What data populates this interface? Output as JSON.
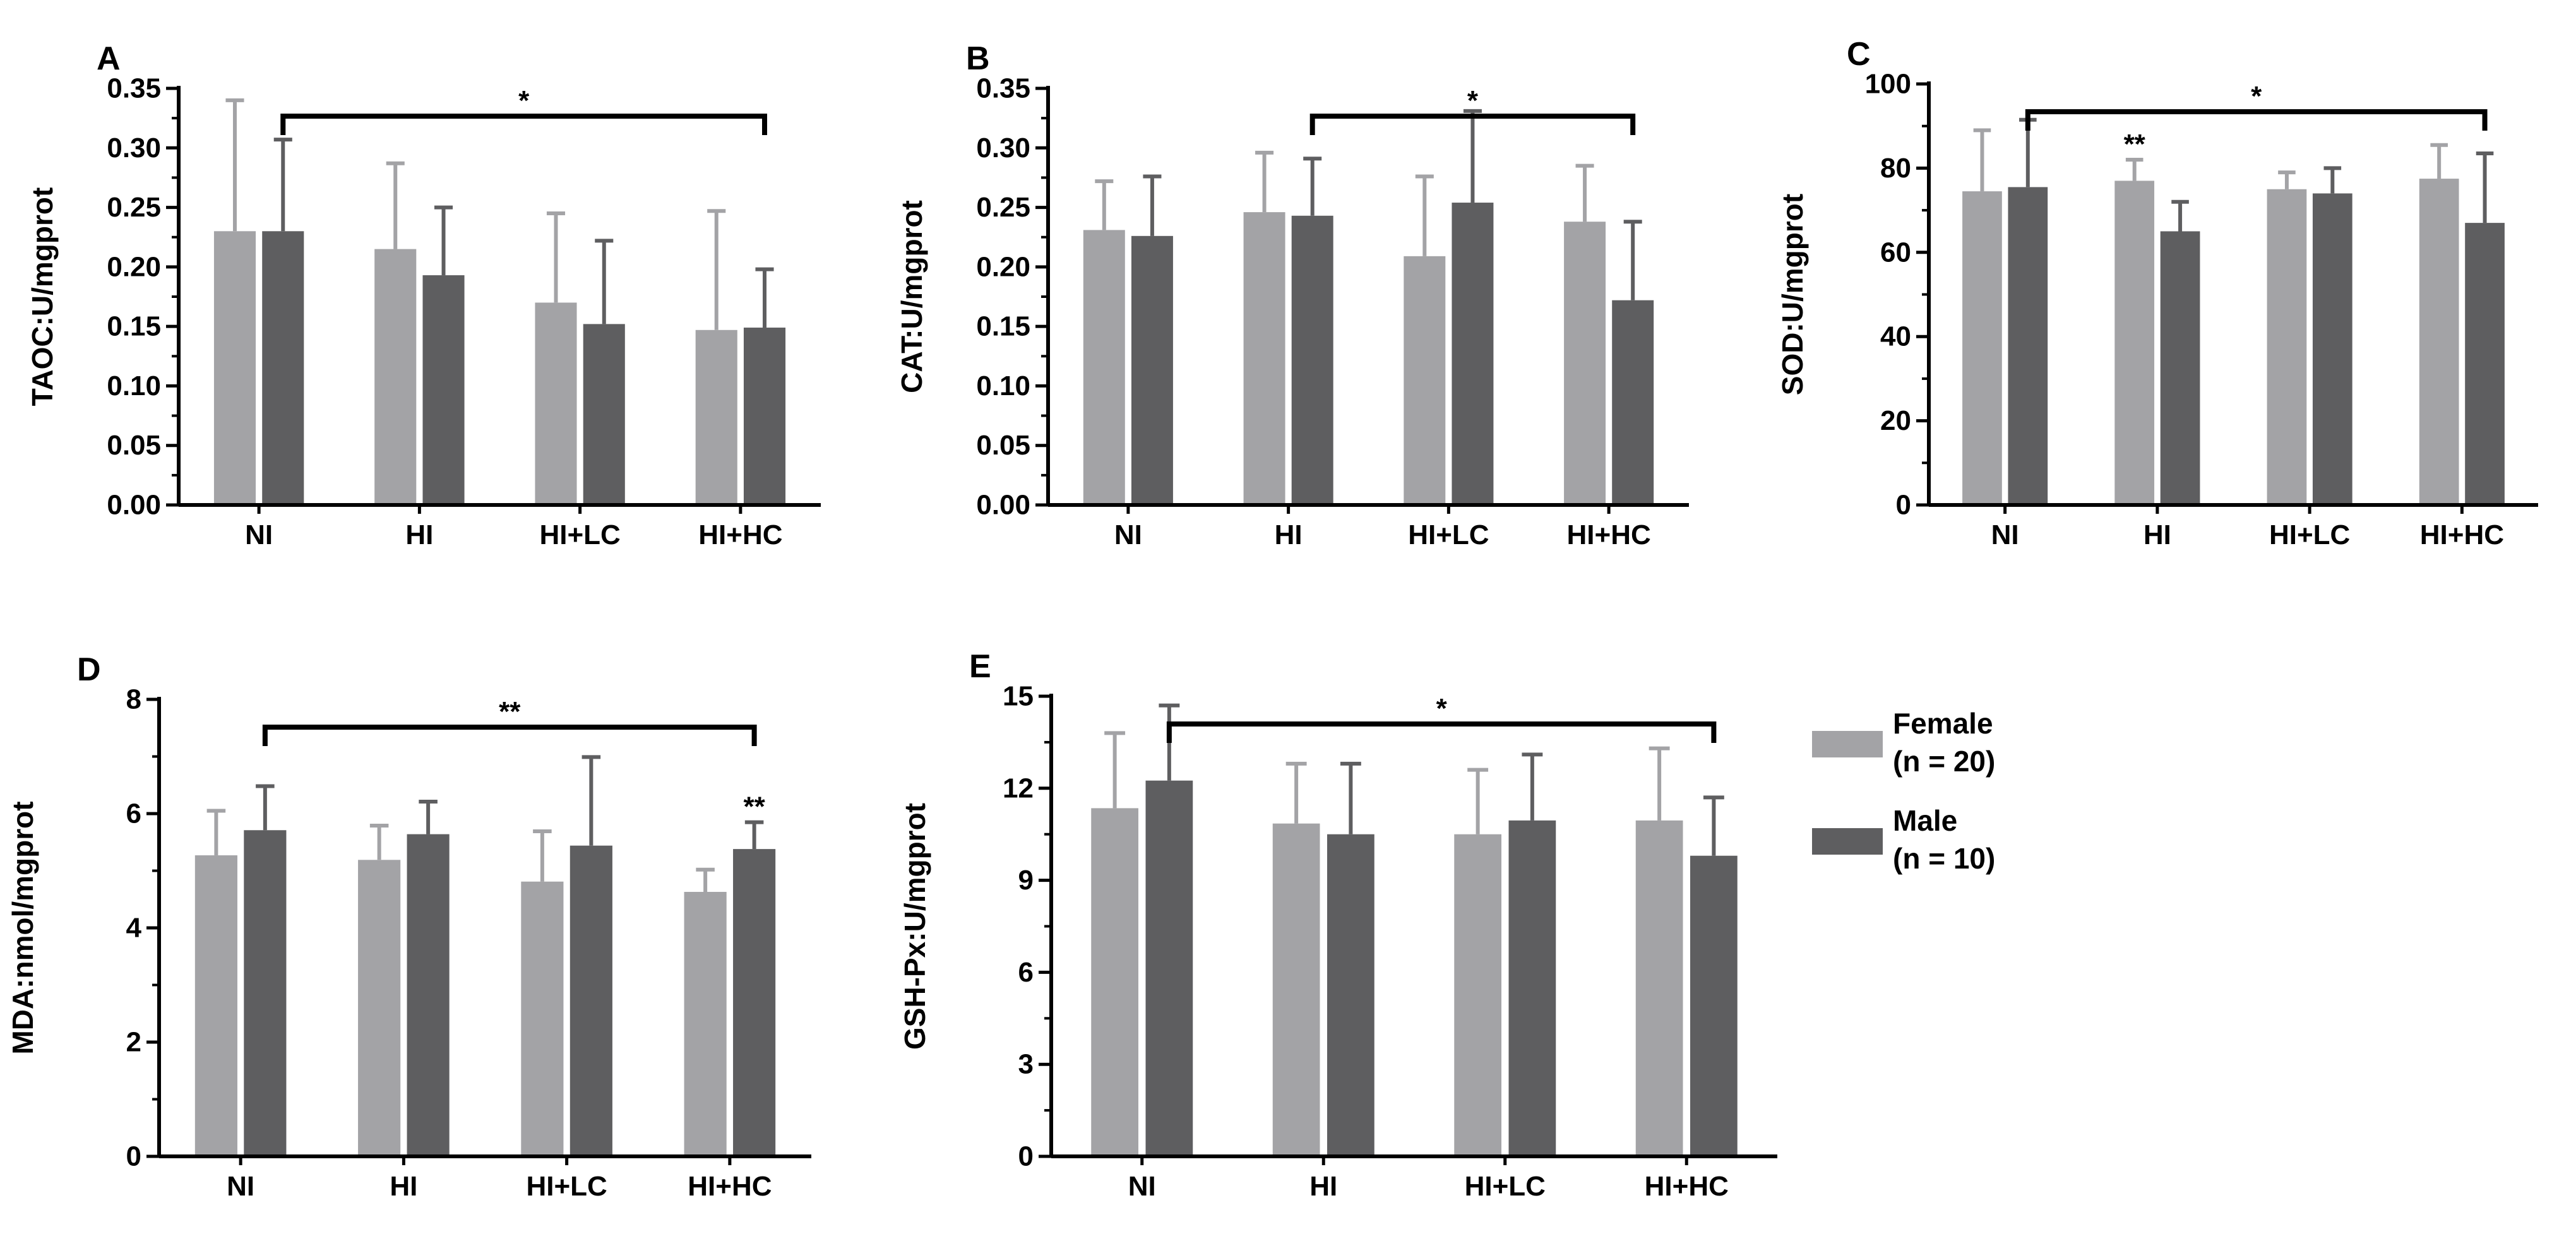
{
  "colors": {
    "female": "#a3a3a6",
    "male": "#5e5e60",
    "axis": "#000000",
    "background": "#ffffff"
  },
  "legend": {
    "items": [
      {
        "label_line1": "Female",
        "label_line2": "(n = 20)",
        "color": "#a3a3a6"
      },
      {
        "label_line1": "Male",
        "label_line2": "(n = 10)",
        "color": "#5e5e60"
      }
    ]
  },
  "chart_data": [
    {
      "panel": "A",
      "type": "bar",
      "ylabel": "TAOC:U/mgprot",
      "categories": [
        "NI",
        "HI",
        "HI+LC",
        "HI+HC"
      ],
      "ylim": [
        0,
        0.35
      ],
      "yticks": [
        "0.00",
        "0.05",
        "0.10",
        "0.15",
        "0.20",
        "0.25",
        "0.30",
        "0.35"
      ],
      "series": [
        {
          "name": "Female (n = 20)",
          "values": [
            0.23,
            0.215,
            0.17,
            0.147
          ],
          "errors": [
            0.11,
            0.072,
            0.075,
            0.1
          ]
        },
        {
          "name": "Male (n = 10)",
          "values": [
            0.23,
            0.193,
            0.152,
            0.149
          ],
          "errors": [
            0.077,
            0.057,
            0.07,
            0.049
          ]
        }
      ],
      "annotations": [
        {
          "type": "bracket",
          "from": "NI",
          "to": "HI+HC",
          "label": "*"
        }
      ]
    },
    {
      "panel": "B",
      "type": "bar",
      "ylabel": "CAT:U/mgprot",
      "categories": [
        "NI",
        "HI",
        "HI+LC",
        "HI+HC"
      ],
      "ylim": [
        0,
        0.35
      ],
      "yticks": [
        "0.00",
        "0.05",
        "0.10",
        "0.15",
        "0.20",
        "0.25",
        "0.30",
        "0.35"
      ],
      "series": [
        {
          "name": "Female (n = 20)",
          "values": [
            0.231,
            0.246,
            0.209,
            0.238
          ],
          "errors": [
            0.041,
            0.05,
            0.067,
            0.047
          ]
        },
        {
          "name": "Male (n = 10)",
          "values": [
            0.226,
            0.243,
            0.254,
            0.172
          ],
          "errors": [
            0.05,
            0.048,
            0.077,
            0.066
          ]
        }
      ],
      "annotations": [
        {
          "type": "bracket",
          "from": "HI",
          "to": "HI+HC",
          "label": "*"
        }
      ]
    },
    {
      "panel": "C",
      "type": "bar",
      "ylabel": "SOD:U/mgprot",
      "categories": [
        "NI",
        "HI",
        "HI+LC",
        "HI+HC"
      ],
      "ylim": [
        0,
        100
      ],
      "yticks": [
        "0",
        "20",
        "40",
        "60",
        "80",
        "100"
      ],
      "series": [
        {
          "name": "Female (n = 20)",
          "values": [
            74.5,
            77,
            75,
            77.5
          ],
          "errors": [
            14.5,
            5,
            4,
            8
          ]
        },
        {
          "name": "Male (n = 10)",
          "values": [
            75.5,
            65,
            74,
            67
          ],
          "errors": [
            16,
            7,
            6,
            16.5
          ]
        }
      ],
      "annotations": [
        {
          "type": "bracket",
          "from": "NI",
          "to": "HI+HC",
          "label": "*"
        },
        {
          "type": "marker",
          "category": "HI",
          "series": "Female (n = 20)",
          "label": "**"
        }
      ]
    },
    {
      "panel": "D",
      "type": "bar",
      "ylabel": "MDA:nmol/mgprot",
      "categories": [
        "NI",
        "HI",
        "HI+LC",
        "HI+HC"
      ],
      "ylim": [
        0,
        8
      ],
      "yticks": [
        "0",
        "2",
        "4",
        "6",
        "8"
      ],
      "series": [
        {
          "name": "Female (n = 20)",
          "values": [
            5.27,
            5.19,
            4.81,
            4.63
          ],
          "errors": [
            0.78,
            0.6,
            0.88,
            0.39
          ]
        },
        {
          "name": "Male (n = 10)",
          "values": [
            5.71,
            5.64,
            5.44,
            5.38
          ],
          "errors": [
            0.77,
            0.57,
            1.55,
            0.47
          ]
        }
      ],
      "annotations": [
        {
          "type": "bracket",
          "from": "NI",
          "to": "HI+HC",
          "label": "**"
        },
        {
          "type": "marker",
          "category": "HI+HC",
          "series": "Male (n = 10)",
          "label": "**"
        }
      ]
    },
    {
      "panel": "E",
      "type": "bar",
      "ylabel": "GSH-Px:U/mgprot",
      "categories": [
        "NI",
        "HI",
        "HI+LC",
        "HI+HC"
      ],
      "ylim": [
        0,
        15
      ],
      "yticks": [
        "0",
        "3",
        "6",
        "9",
        "12",
        "15"
      ],
      "series": [
        {
          "name": "Female (n = 20)",
          "values": [
            11.35,
            10.85,
            10.5,
            10.95
          ],
          "errors": [
            2.45,
            1.95,
            2.1,
            2.35
          ]
        },
        {
          "name": "Male (n = 10)",
          "values": [
            12.25,
            10.5,
            10.95,
            9.8
          ],
          "errors": [
            2.45,
            2.3,
            2.15,
            1.9
          ]
        }
      ],
      "annotations": [
        {
          "type": "bracket",
          "from": "NI",
          "to": "HI+HC",
          "label": "*"
        }
      ]
    }
  ]
}
